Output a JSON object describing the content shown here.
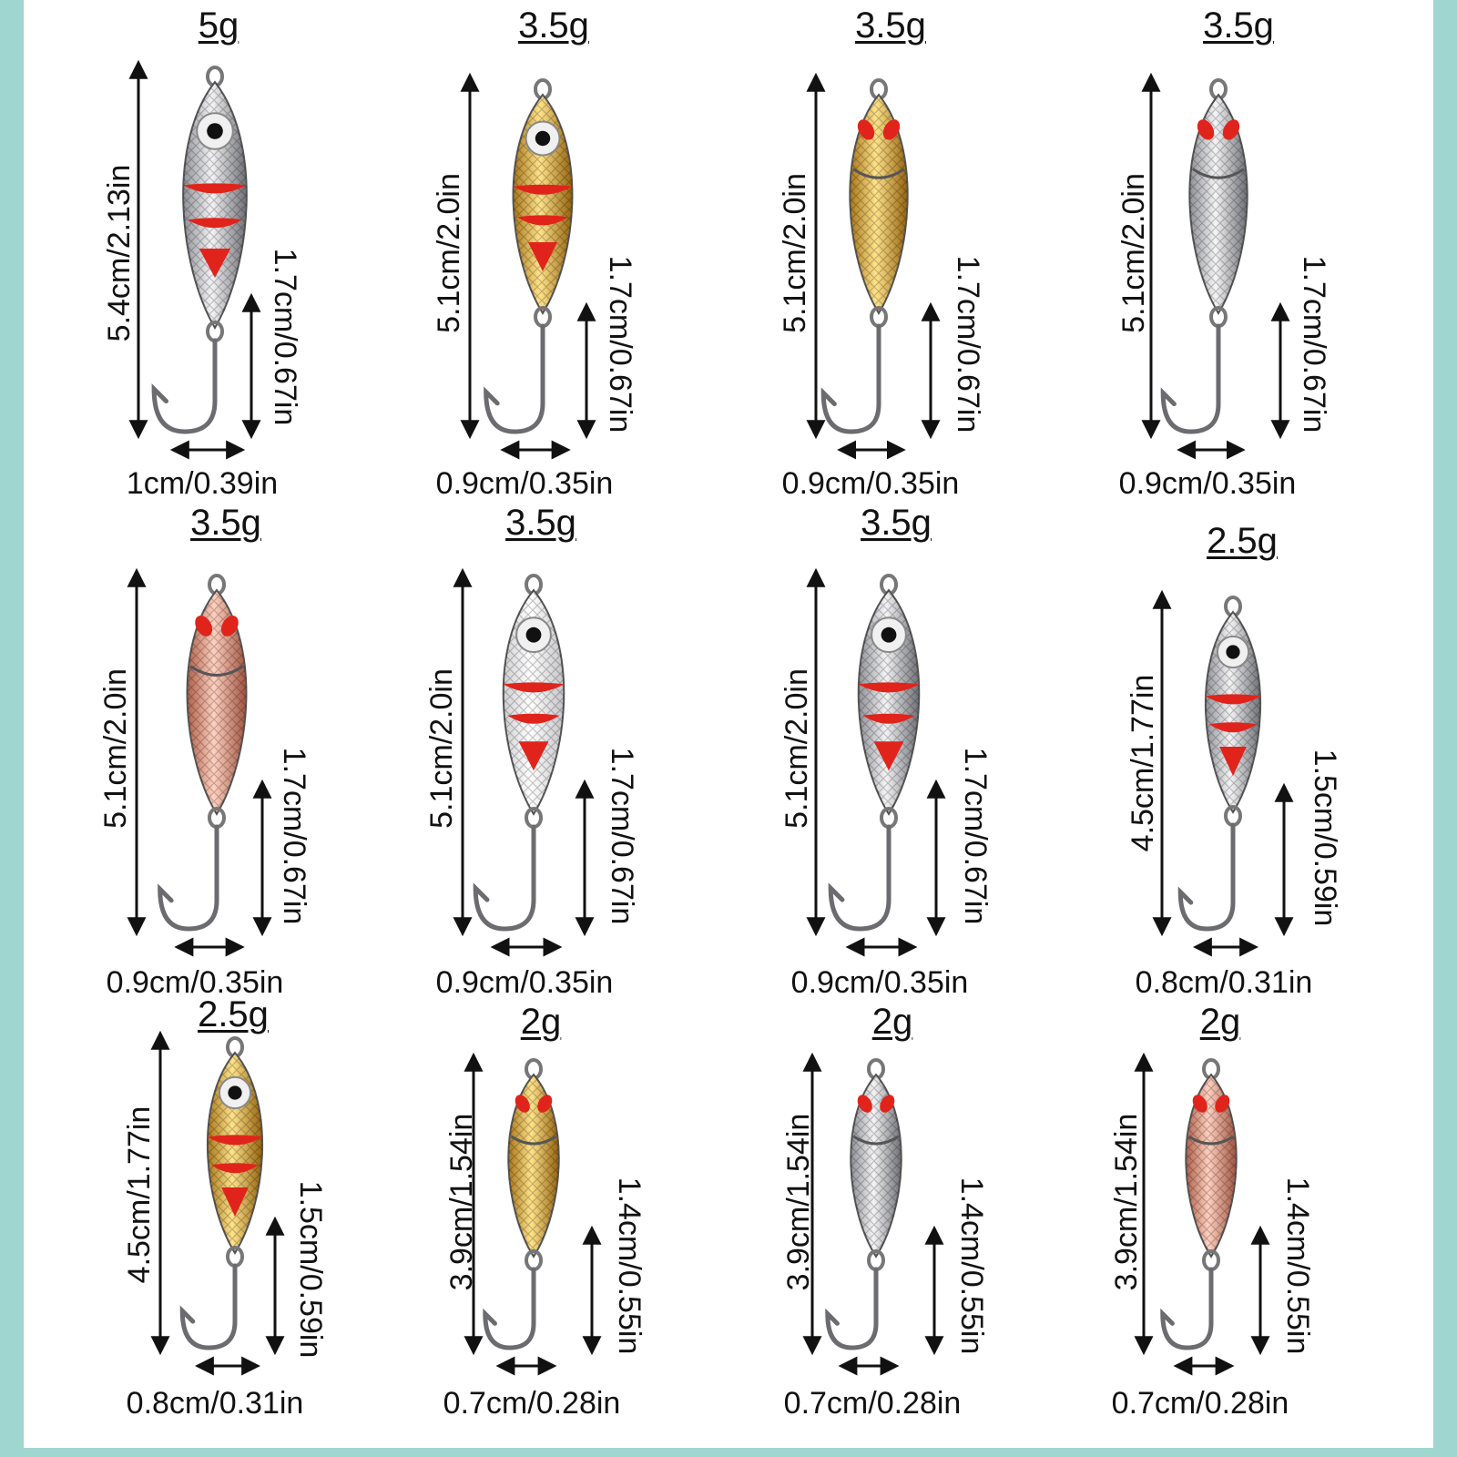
{
  "colors": {
    "frame": "#9fd6cf",
    "silver": "#c9c9cc",
    "gold": "#d9a93a",
    "copper": "#d99a86",
    "white": "#f2f2f2",
    "red": "#e0241b"
  },
  "lures": [
    {
      "weight": "5g",
      "length": "5.4cm/2.13in",
      "hook": "1.7cm/0.67in",
      "width": "1cm/0.39in",
      "finish": "silver",
      "style": "eye"
    },
    {
      "weight": "3.5g",
      "length": "5.1cm/2.0in",
      "hook": "1.7cm/0.67in",
      "width": "0.9cm/0.35in",
      "finish": "gold",
      "style": "eye"
    },
    {
      "weight": "3.5g",
      "length": "5.1cm/2.0in",
      "hook": "1.7cm/0.67in",
      "width": "0.9cm/0.35in",
      "finish": "gold",
      "style": "spoon"
    },
    {
      "weight": "3.5g",
      "length": "5.1cm/2.0in",
      "hook": "1.7cm/0.67in",
      "width": "0.9cm/0.35in",
      "finish": "silver",
      "style": "spoon"
    },
    {
      "weight": "3.5g",
      "length": "5.1cm/2.0in",
      "hook": "1.7cm/0.67in",
      "width": "0.9cm/0.35in",
      "finish": "copper",
      "style": "spoon"
    },
    {
      "weight": "3.5g",
      "length": "5.1cm/2.0in",
      "hook": "1.7cm/0.67in",
      "width": "0.9cm/0.35in",
      "finish": "white",
      "style": "eye"
    },
    {
      "weight": "3.5g",
      "length": "5.1cm/2.0in",
      "hook": "1.7cm/0.67in",
      "width": "0.9cm/0.35in",
      "finish": "silver",
      "style": "eye"
    },
    {
      "weight": "2.5g",
      "length": "4.5cm/1.77in",
      "hook": "1.5cm/0.59in",
      "width": "0.8cm/0.31in",
      "finish": "silver",
      "style": "eye"
    },
    {
      "weight": "2.5g",
      "length": "4.5cm/1.77in",
      "hook": "1.5cm/0.59in",
      "width": "0.8cm/0.31in",
      "finish": "gold",
      "style": "eye"
    },
    {
      "weight": "2g",
      "length": "3.9cm/1.54in",
      "hook": "1.4cm/0.55in",
      "width": "0.7cm/0.28in",
      "finish": "gold",
      "style": "spoon"
    },
    {
      "weight": "2g",
      "length": "3.9cm/1.54in",
      "hook": "1.4cm/0.55in",
      "width": "0.7cm/0.28in",
      "finish": "silver",
      "style": "spoon"
    },
    {
      "weight": "2g",
      "length": "3.9cm/1.54in",
      "hook": "1.4cm/0.55in",
      "width": "0.7cm/0.28in",
      "finish": "copper",
      "style": "spoon"
    }
  ]
}
